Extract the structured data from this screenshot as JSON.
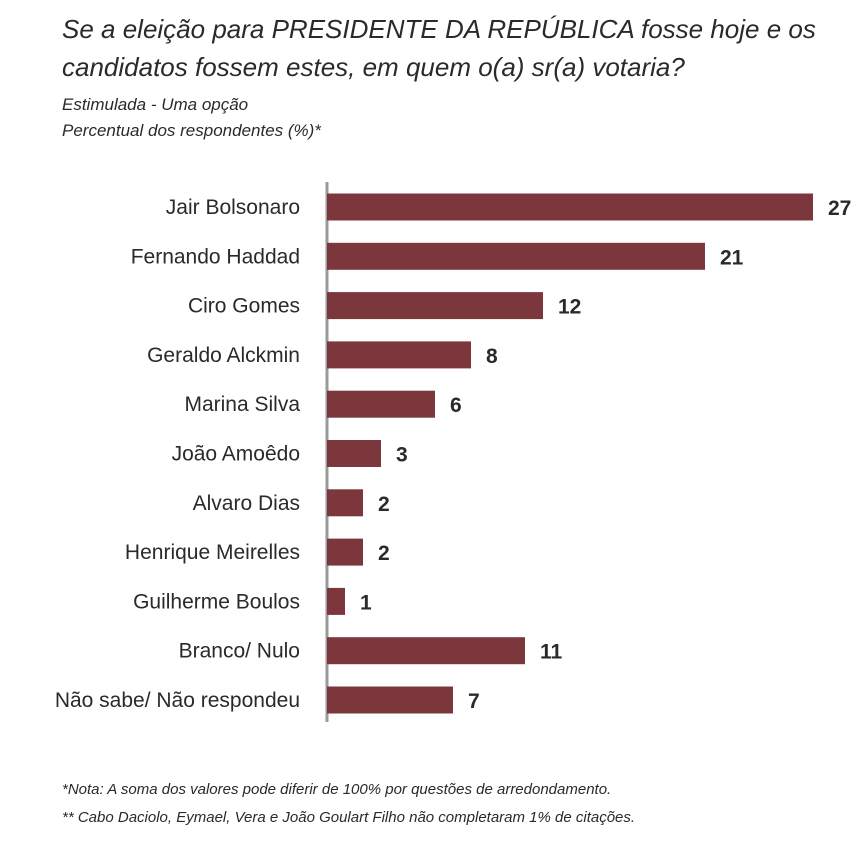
{
  "header": {
    "title": "Se a eleição para PRESIDENTE DA REPÚBLICA fosse hoje e os candidatos fossem estes, em quem o(a) sr(a) votaria?",
    "subtitle_line1": "Estimulada - Uma opção",
    "subtitle_line2": "Percentual dos respondentes (%)*"
  },
  "chart_data": {
    "type": "bar",
    "orientation": "horizontal",
    "categories": [
      "Jair Bolsonaro",
      "Fernando Haddad",
      "Ciro Gomes",
      "Geraldo Alckmin",
      "Marina Silva",
      "João Amoêdo",
      "Alvaro Dias",
      "Henrique Meirelles",
      "Guilherme Boulos",
      "Branco/ Nulo",
      "Não sabe/ Não respondeu"
    ],
    "values": [
      27,
      21,
      12,
      8,
      6,
      3,
      2,
      2,
      1,
      11,
      7
    ],
    "data_labels": [
      "27",
      "21",
      "12",
      "8",
      "6",
      "3",
      "2",
      "2",
      "1",
      "11",
      "7"
    ],
    "xlim": [
      0,
      27
    ],
    "bar_color": "#7b373c",
    "axis_color": "#9a9a9a",
    "grid": false,
    "legend": "none"
  },
  "footer": {
    "note1": "*Nota: A soma dos valores pode diferir de 100% por questões de arredondamento.",
    "note2": "** Cabo Daciolo, Eymael, Vera e João Goulart Filho não completaram 1% de citações."
  }
}
